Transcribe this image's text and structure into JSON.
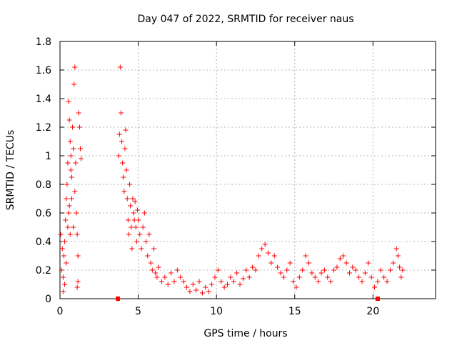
{
  "chart_data": {
    "type": "scatter",
    "title": "Day 047 of 2022, SRMTID for receiver naus",
    "xlabel": "GPS time / hours",
    "ylabel": "SRMTID / TECUs",
    "xlim": [
      0,
      24
    ],
    "ylim": [
      0,
      1.8
    ],
    "xticks": [
      0,
      5,
      10,
      15,
      20
    ],
    "yticks": [
      0,
      0.2,
      0.4,
      0.6,
      0.8,
      1,
      1.2,
      1.4,
      1.6,
      1.8
    ],
    "ytick_labels": [
      "0",
      "0.2",
      "0.4",
      "0.6",
      "0.8",
      "1",
      "1.2",
      "1.4",
      "1.6",
      "1.8"
    ],
    "xtick_labels": [
      "0",
      "5",
      "10",
      "15",
      "20"
    ],
    "grid": true,
    "series": [
      {
        "name": "SRMTID",
        "marker": "plus",
        "color": "#ff0000",
        "points": [
          [
            0.05,
            0.45
          ],
          [
            0.1,
            0.2
          ],
          [
            0.15,
            0.35
          ],
          [
            0.2,
            0.15
          ],
          [
            0.25,
            0.3
          ],
          [
            0.3,
            0.4
          ],
          [
            0.35,
            0.55
          ],
          [
            0.4,
            0.7
          ],
          [
            0.45,
            0.8
          ],
          [
            0.5,
            0.95
          ],
          [
            0.55,
            1.38
          ],
          [
            0.6,
            1.25
          ],
          [
            0.65,
            1.1
          ],
          [
            0.7,
            0.9
          ],
          [
            0.75,
            0.7
          ],
          [
            0.8,
            1.2
          ],
          [
            0.85,
            1.05
          ],
          [
            0.9,
            1.5
          ],
          [
            0.95,
            1.62
          ],
          [
            1.0,
            0.95
          ],
          [
            1.05,
            0.6
          ],
          [
            1.1,
            0.45
          ],
          [
            1.15,
            0.3
          ],
          [
            1.2,
            1.3
          ],
          [
            1.25,
            1.2
          ],
          [
            1.3,
            1.05
          ],
          [
            1.35,
            0.98
          ],
          [
            1.15,
            0.12
          ],
          [
            1.1,
            0.08
          ],
          [
            0.95,
            0.75
          ],
          [
            0.85,
            0.5
          ],
          [
            0.75,
            0.85
          ],
          [
            0.6,
            0.65
          ],
          [
            0.5,
            0.5
          ],
          [
            0.4,
            0.25
          ],
          [
            0.3,
            0.1
          ],
          [
            0.2,
            0.05
          ],
          [
            0.55,
            0.6
          ],
          [
            0.65,
            0.45
          ],
          [
            0.7,
            1.0
          ],
          [
            3.7,
            0.0
          ],
          [
            3.75,
            1.0
          ],
          [
            3.8,
            1.15
          ],
          [
            3.85,
            1.62
          ],
          [
            3.9,
            1.3
          ],
          [
            3.95,
            1.1
          ],
          [
            4.0,
            0.95
          ],
          [
            4.05,
            0.85
          ],
          [
            4.1,
            0.75
          ],
          [
            4.15,
            1.05
          ],
          [
            4.2,
            1.18
          ],
          [
            4.25,
            0.9
          ],
          [
            4.3,
            0.7
          ],
          [
            4.35,
            0.55
          ],
          [
            4.4,
            0.45
          ],
          [
            4.45,
            0.8
          ],
          [
            4.5,
            0.65
          ],
          [
            4.55,
            0.5
          ],
          [
            4.6,
            0.35
          ],
          [
            4.65,
            0.7
          ],
          [
            4.7,
            0.6
          ],
          [
            4.75,
            0.55
          ],
          [
            4.8,
            0.68
          ],
          [
            4.85,
            0.5
          ],
          [
            4.9,
            0.4
          ],
          [
            4.95,
            0.62
          ],
          [
            5.0,
            0.55
          ],
          [
            5.1,
            0.45
          ],
          [
            5.2,
            0.35
          ],
          [
            5.3,
            0.5
          ],
          [
            5.4,
            0.6
          ],
          [
            5.5,
            0.4
          ],
          [
            5.6,
            0.3
          ],
          [
            5.7,
            0.45
          ],
          [
            5.8,
            0.25
          ],
          [
            5.9,
            0.2
          ],
          [
            6.0,
            0.35
          ],
          [
            6.1,
            0.18
          ],
          [
            6.2,
            0.15
          ],
          [
            6.3,
            0.22
          ],
          [
            6.5,
            0.12
          ],
          [
            6.7,
            0.15
          ],
          [
            6.9,
            0.1
          ],
          [
            7.1,
            0.18
          ],
          [
            7.3,
            0.12
          ],
          [
            7.5,
            0.2
          ],
          [
            7.7,
            0.15
          ],
          [
            7.9,
            0.12
          ],
          [
            8.1,
            0.08
          ],
          [
            8.3,
            0.05
          ],
          [
            8.5,
            0.1
          ],
          [
            8.7,
            0.06
          ],
          [
            8.9,
            0.12
          ],
          [
            9.1,
            0.04
          ],
          [
            9.3,
            0.08
          ],
          [
            9.5,
            0.05
          ],
          [
            9.7,
            0.1
          ],
          [
            9.9,
            0.15
          ],
          [
            10.1,
            0.2
          ],
          [
            10.3,
            0.12
          ],
          [
            10.5,
            0.08
          ],
          [
            10.7,
            0.1
          ],
          [
            10.9,
            0.15
          ],
          [
            11.1,
            0.12
          ],
          [
            11.3,
            0.18
          ],
          [
            11.5,
            0.1
          ],
          [
            11.7,
            0.14
          ],
          [
            11.9,
            0.2
          ],
          [
            12.1,
            0.15
          ],
          [
            12.3,
            0.22
          ],
          [
            12.5,
            0.2
          ],
          [
            12.7,
            0.3
          ],
          [
            12.9,
            0.35
          ],
          [
            13.1,
            0.38
          ],
          [
            13.3,
            0.32
          ],
          [
            13.5,
            0.25
          ],
          [
            13.7,
            0.3
          ],
          [
            13.9,
            0.22
          ],
          [
            14.1,
            0.18
          ],
          [
            14.3,
            0.15
          ],
          [
            14.5,
            0.2
          ],
          [
            14.7,
            0.25
          ],
          [
            14.9,
            0.12
          ],
          [
            15.1,
            0.08
          ],
          [
            15.3,
            0.15
          ],
          [
            15.5,
            0.2
          ],
          [
            15.7,
            0.3
          ],
          [
            15.9,
            0.25
          ],
          [
            16.1,
            0.18
          ],
          [
            16.3,
            0.15
          ],
          [
            16.5,
            0.12
          ],
          [
            16.7,
            0.18
          ],
          [
            16.9,
            0.2
          ],
          [
            17.1,
            0.15
          ],
          [
            17.3,
            0.12
          ],
          [
            17.5,
            0.2
          ],
          [
            17.7,
            0.22
          ],
          [
            17.9,
            0.28
          ],
          [
            18.1,
            0.3
          ],
          [
            18.3,
            0.25
          ],
          [
            18.5,
            0.18
          ],
          [
            18.7,
            0.22
          ],
          [
            18.9,
            0.2
          ],
          [
            19.1,
            0.15
          ],
          [
            19.3,
            0.12
          ],
          [
            19.5,
            0.18
          ],
          [
            19.7,
            0.25
          ],
          [
            19.9,
            0.15
          ],
          [
            20.1,
            0.08
          ],
          [
            20.3,
            0.12
          ],
          [
            20.5,
            0.2
          ],
          [
            20.7,
            0.15
          ],
          [
            20.9,
            0.12
          ],
          [
            21.1,
            0.2
          ],
          [
            21.3,
            0.25
          ],
          [
            21.5,
            0.35
          ],
          [
            21.6,
            0.3
          ],
          [
            21.7,
            0.22
          ],
          [
            21.8,
            0.15
          ],
          [
            21.9,
            0.2
          ]
        ]
      }
    ],
    "gap_markers": [
      {
        "x": 3.7,
        "y": 0
      },
      {
        "x": 20.3,
        "y": 0
      }
    ]
  }
}
